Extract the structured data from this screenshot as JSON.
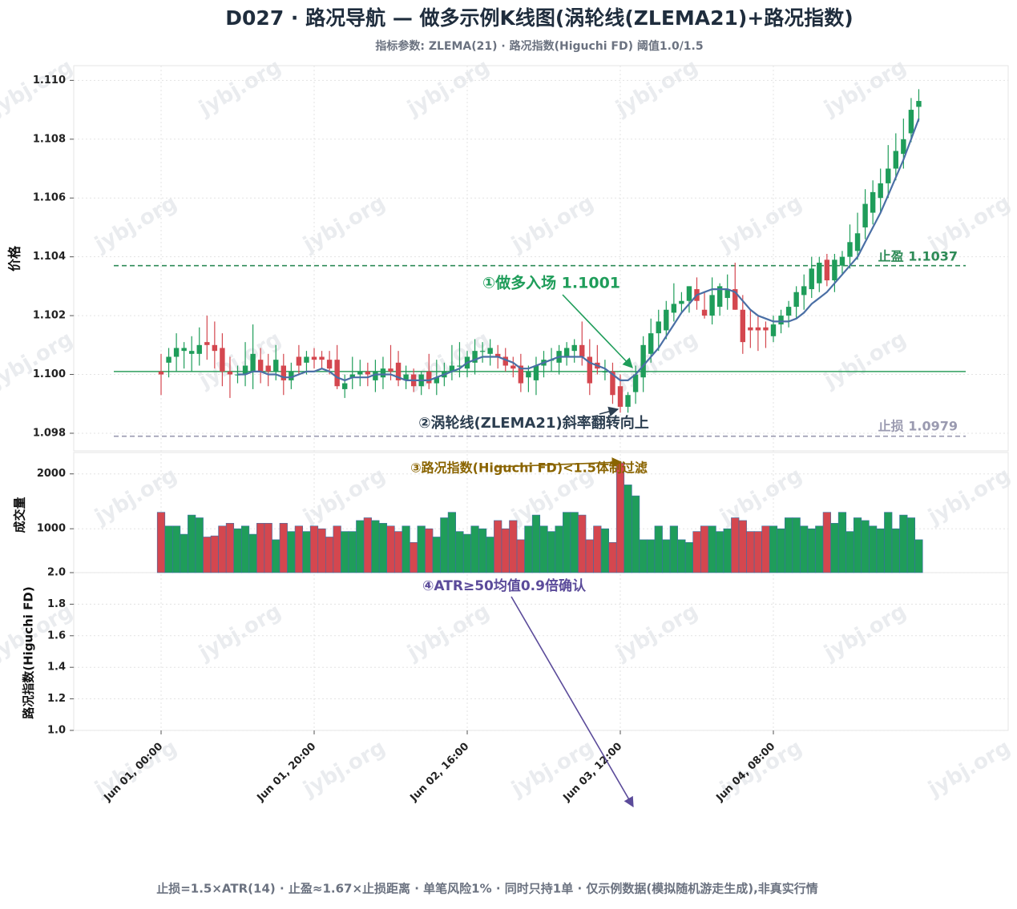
{
  "chart_data": {
    "type": "candlestick",
    "title": "D027 · 路况导航 — 做多示例K线图(涡轮线(ZLEMA21)+路况指数)",
    "subtitle": "指标参数: ZLEMA(21) · 路况指数(Higuchi FD) 阈值1.0/1.5",
    "footer": "止损=1.5×ATR(14) · 止盈≈1.67×止损距离 · 单笔风险1% · 同时只持1单 · 仅示例数据(模拟随机游走生成),非真实行情",
    "watermark": "jybj.org",
    "ylabel": "价格",
    "volume_label": "成交量",
    "fd_label": "路况指数(Higuchi FD)",
    "categories": [
      "Jun 01, 00:00",
      null,
      null,
      null,
      null,
      null,
      null,
      null,
      null,
      null,
      null,
      null,
      null,
      null,
      null,
      null,
      null,
      null,
      null,
      null,
      "Jun 01, 20:00",
      null,
      null,
      null,
      null,
      null,
      null,
      null,
      null,
      null,
      null,
      null,
      null,
      null,
      null,
      null,
      null,
      null,
      null,
      null,
      "Jun 02, 16:00",
      null,
      null,
      null,
      null,
      null,
      null,
      null,
      null,
      null,
      null,
      null,
      null,
      null,
      null,
      null,
      null,
      null,
      null,
      null,
      "Jun 03, 12:00",
      null,
      null,
      null,
      null,
      null,
      null,
      null,
      null,
      null,
      null,
      null,
      null,
      null,
      null,
      null,
      null,
      null,
      null,
      null,
      "Jun 04, 08:00",
      null,
      null,
      null,
      null,
      null,
      null,
      null,
      null,
      null,
      null,
      null,
      null,
      null,
      null,
      null,
      null,
      null,
      null,
      null
    ],
    "open": [
      1.1001,
      1.1004,
      1.1006,
      1.1008,
      1.1007,
      1.1007,
      1.1011,
      1.101,
      1.1009,
      1.1001,
      1.1,
      1.1,
      1.1001,
      1.1005,
      1.1003,
      1.1001,
      1.1003,
      1.0998,
      1.1006,
      1.1004,
      1.1006,
      1.1006,
      1.1005,
      1.1005,
      1.0995,
      1.0999,
      1.1,
      1.1001,
      1.0998,
      1.0999,
      1.1002,
      1.1004,
      1.0998,
      1.1,
      1.0996,
      1.1001,
      1.0997,
      1.0999,
      1.1001,
      1.1003,
      1.1002,
      1.1004,
      1.1008,
      1.1007,
      1.1007,
      1.1006,
      1.1003,
      1.1003,
      1.0999,
      1.0998,
      1.1003,
      1.1005,
      1.1004,
      1.1006,
      1.1008,
      1.101,
      1.1006,
      1.1004,
      1.1001,
      1.1001,
      1.0996,
      1.0989,
      1.0994,
      1.0999,
      1.1007,
      1.1014,
      1.1015,
      1.1021,
      1.1024,
      1.1025,
      1.1029,
      1.1022,
      1.102,
      1.1023,
      1.1026,
      1.1029,
      1.1022,
      1.1016,
      1.1016,
      1.1016,
      1.1013,
      1.1017,
      1.102,
      1.1023,
      1.1027,
      1.1029,
      1.1031,
      1.1039,
      1.1032,
      1.1037,
      1.104,
      1.1042,
      1.105,
      1.1055,
      1.106,
      1.1065,
      1.107,
      1.1075,
      1.1082,
      1.1091
    ],
    "high": [
      1.1007,
      1.1009,
      1.1014,
      1.1011,
      1.1013,
      1.1016,
      1.102,
      1.1018,
      1.1014,
      1.1006,
      1.1003,
      1.1011,
      1.1017,
      1.1009,
      1.1007,
      1.101,
      1.1007,
      1.1004,
      1.101,
      1.1008,
      1.1009,
      1.1008,
      1.1008,
      1.101,
      1.1,
      1.1006,
      1.1005,
      1.1004,
      1.1005,
      1.1006,
      1.101,
      1.1008,
      1.1003,
      1.1002,
      1.1001,
      1.1007,
      1.1005,
      1.1004,
      1.101,
      1.1011,
      1.1008,
      1.1012,
      1.1011,
      1.1012,
      1.101,
      1.1009,
      1.1006,
      1.1007,
      1.1003,
      1.1006,
      1.1008,
      1.1009,
      1.101,
      1.1011,
      1.1012,
      1.1018,
      1.1012,
      1.101,
      1.1005,
      1.1004,
      1.1,
      1.0994,
      1.1003,
      1.1013,
      1.1019,
      1.1022,
      1.1025,
      1.1031,
      1.1028,
      1.103,
      1.1033,
      1.1028,
      1.1033,
      1.1031,
      1.1034,
      1.1038,
      1.1027,
      1.1022,
      1.102,
      1.1018,
      1.102,
      1.1022,
      1.1025,
      1.103,
      1.1034,
      1.104,
      1.104,
      1.1041,
      1.1041,
      1.1042,
      1.1051,
      1.1055,
      1.1063,
      1.1066,
      1.107,
      1.1078,
      1.1082,
      1.1087,
      1.1094,
      1.1097
    ],
    "low": [
      1.0993,
      1.0999,
      1.1001,
      1.1002,
      1.1001,
      1.1003,
      1.1005,
      1.1002,
      1.0996,
      1.0992,
      1.0997,
      1.0996,
      1.0995,
      1.0997,
      1.0996,
      1.0998,
      1.0993,
      1.0995,
      1.1,
      1.1,
      1.1002,
      1.1002,
      1.1,
      1.0995,
      1.0992,
      1.0995,
      1.0996,
      1.0996,
      1.0994,
      1.0995,
      1.0998,
      1.0996,
      1.0995,
      1.0994,
      1.0993,
      1.0995,
      1.0993,
      1.0996,
      1.0998,
      1.0999,
      1.0999,
      1.1,
      1.1004,
      1.1003,
      1.1002,
      1.1001,
      1.0999,
      1.0994,
      1.0994,
      1.0993,
      1.0999,
      1.1001,
      1.1,
      1.1003,
      1.1004,
      1.1003,
      1.0993,
      1.1,
      1.0998,
      1.099,
      1.0987,
      1.0987,
      1.099,
      1.0994,
      1.1004,
      1.1008,
      1.1012,
      1.1018,
      1.1021,
      1.1021,
      1.1022,
      1.1019,
      1.1017,
      1.102,
      1.1022,
      1.1022,
      1.1007,
      1.1009,
      1.1008,
      1.1009,
      1.1011,
      1.1014,
      1.1016,
      1.1019,
      1.1022,
      1.1026,
      1.1028,
      1.103,
      1.1028,
      1.1034,
      1.1036,
      1.1039,
      1.1046,
      1.1051,
      1.1055,
      1.106,
      1.1066,
      1.107,
      1.1079,
      1.1086
    ],
    "close": [
      1.1,
      1.1006,
      1.1009,
      1.1009,
      1.1008,
      1.101,
      1.101,
      1.1008,
      1.1001,
      1.1,
      1.1,
      1.1003,
      1.1007,
      1.1001,
      1.1001,
      1.1005,
      1.0998,
      1.1001,
      1.1003,
      1.1006,
      1.1005,
      1.1005,
      1.1002,
      1.0996,
      1.0997,
      1.1,
      1.1001,
      1.1,
      1.1001,
      1.1002,
      1.1001,
      1.0998,
      1.1,
      1.0996,
      1.1,
      1.0997,
      1.0999,
      1.1001,
      1.1003,
      1.1003,
      1.1006,
      1.1008,
      1.1008,
      1.1009,
      1.1006,
      1.1003,
      1.1002,
      1.0997,
      1.1001,
      1.1003,
      1.1005,
      1.1005,
      1.1008,
      1.1009,
      1.101,
      1.1006,
      1.0997,
      1.1002,
      1.1001,
      1.0993,
      1.0989,
      1.0993,
      1.1,
      1.101,
      1.1014,
      1.1018,
      1.1022,
      1.1024,
      1.1025,
      1.103,
      1.1025,
      1.102,
      1.1027,
      1.103,
      1.1029,
      1.1022,
      1.1011,
      1.1015,
      1.1015,
      1.1015,
      1.1017,
      1.102,
      1.1023,
      1.1028,
      1.103,
      1.1036,
      1.1038,
      1.1032,
      1.1039,
      1.104,
      1.1045,
      1.1048,
      1.1058,
      1.1062,
      1.1065,
      1.107,
      1.1076,
      1.108,
      1.109,
      1.1093
    ],
    "volume": [
      1300,
      1050,
      1050,
      900,
      1250,
      1200,
      850,
      870,
      1050,
      1100,
      1000,
      1050,
      900,
      1100,
      1100,
      800,
      1100,
      950,
      1050,
      950,
      1050,
      1000,
      850,
      1050,
      950,
      950,
      1150,
      1200,
      1150,
      1100,
      1050,
      950,
      1050,
      750,
      1050,
      1000,
      850,
      1200,
      1300,
      950,
      900,
      1050,
      1000,
      850,
      1150,
      1000,
      1150,
      800,
      1050,
      1250,
      1050,
      950,
      1050,
      1300,
      1300,
      1250,
      800,
      1050,
      1000,
      750,
      2200,
      1800,
      1600,
      800,
      800,
      1050,
      800,
      1050,
      800,
      750,
      950,
      1050,
      1050,
      950,
      1000,
      1200,
      1150,
      950,
      950,
      1050,
      1050,
      1000,
      1200,
      1200,
      1050,
      1000,
      1050,
      1300,
      1100,
      1300,
      950,
      1200,
      1150,
      1050,
      1000,
      1300,
      1000,
      1250,
      1200,
      800
    ],
    "zlema": {
      "color": "#4a6fa5",
      "values": [
        null,
        null,
        null,
        null,
        null,
        null,
        null,
        null,
        null,
        null,
        1.1,
        1.1,
        1.1001,
        1.1001,
        1.1,
        1.1,
        1.0999,
        1.0999,
        1.1,
        1.1001,
        1.1001,
        1.1002,
        1.1001,
        1.0999,
        1.0998,
        1.0999,
        1.0999,
        1.0999,
        1.1,
        1.1,
        1.1,
        1.0999,
        1.0998,
        1.0998,
        1.0998,
        1.0998,
        1.0999,
        1.1,
        1.1001,
        1.1002,
        1.1004,
        1.1005,
        1.1006,
        1.1006,
        1.1006,
        1.1005,
        1.1004,
        1.1002,
        1.1002,
        1.1003,
        1.1004,
        1.1005,
        1.1006,
        1.1006,
        1.1006,
        1.1006,
        1.1004,
        1.1003,
        1.1002,
        1.1,
        1.0998,
        1.0998,
        1.1,
        1.1003,
        1.1006,
        1.1009,
        1.1013,
        1.1017,
        1.1021,
        1.1024,
        1.1027,
        1.1028,
        1.1029,
        1.1029,
        1.1029,
        1.1028,
        1.1025,
        1.1022,
        1.102,
        1.1019,
        1.1018,
        1.1018,
        1.1018,
        1.1019,
        1.1021,
        1.1024,
        1.1026,
        1.1028,
        1.1031,
        1.1034,
        1.1037,
        1.104,
        1.1045,
        1.105,
        1.1055,
        1.1061,
        1.1067,
        1.1073,
        1.108,
        1.1087
      ]
    },
    "up_color": "#1f9d5a",
    "down_color": "#d4474f",
    "levels": [
      {
        "value": 1.1001,
        "color": "#2e9e5e",
        "dashed": false
      },
      {
        "value": 1.1037,
        "label": "止盈 1.1037",
        "color": "#2e8b57",
        "dashed": true
      },
      {
        "value": 1.0979,
        "label": "止损 1.0979",
        "color": "#9a9ab0",
        "dashed": true
      }
    ],
    "annotations": [
      {
        "value": 1.1001,
        "label": "①做多入场 1.1001",
        "color": "#1f9d5a"
      },
      {
        "text": "②涡轮线(ZLEMA21)斜率翻转向上",
        "color": "#2c3e50"
      },
      {
        "text": "③路况指数(Higuchi FD)<1.5体制过滤",
        "color": "#8a6400"
      },
      {
        "text": "④ATR≥50均值0.9倍确认",
        "color": "#5b4b9a"
      }
    ],
    "ylim": [
      1.0974,
      1.1105
    ],
    "yticks": [
      1.098,
      {
        "value": 1.1,
        "label": "1.100"
      },
      1.102,
      1.104,
      1.106,
      1.108,
      {
        "value": 1.11,
        "label": "1.110"
      }
    ],
    "volume_ylim": [
      200,
      2390
    ],
    "volume_yticks": [
      1000,
      2000
    ],
    "fd_ylim": [
      1.0,
      2.0
    ],
    "fd_yticks": [
      {
        "value": 1,
        "label": "1.0"
      },
      1.2,
      1.4,
      1.6,
      1.8,
      {
        "value": 2,
        "label": "2.0"
      }
    ],
    "grid": true
  }
}
